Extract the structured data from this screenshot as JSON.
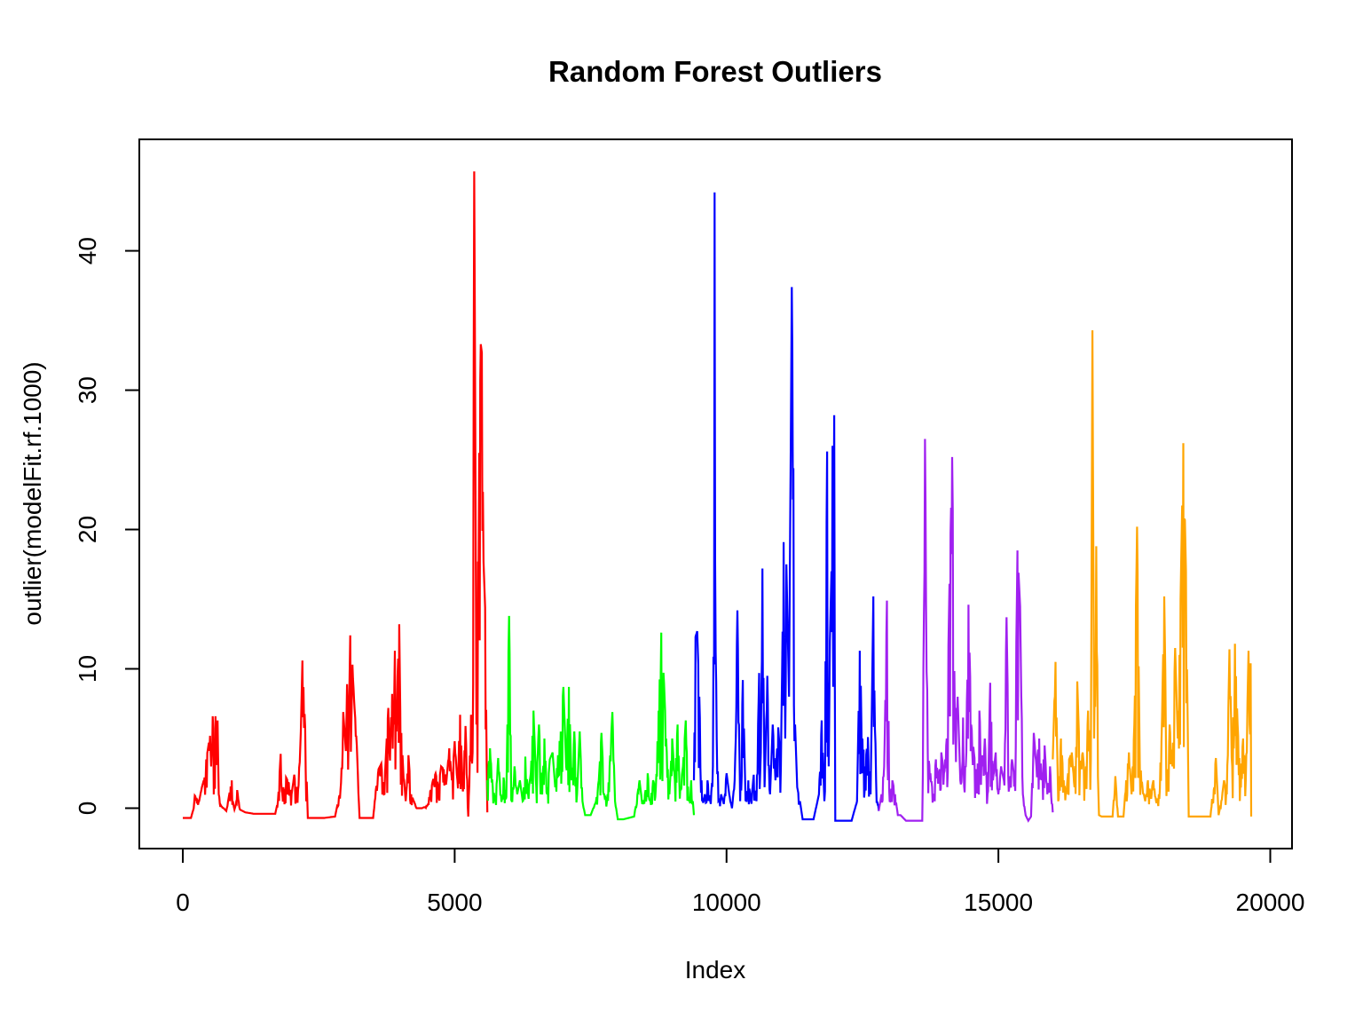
{
  "chart_data": {
    "type": "line",
    "title": "Random Forest Outliers",
    "xlabel": "Index",
    "ylabel": "outlier(modelFit.rf.1000)",
    "xlim": [
      -800,
      20400
    ],
    "ylim": [
      -2.9,
      48
    ],
    "xticks": [
      0,
      5000,
      10000,
      15000,
      20000
    ],
    "yticks": [
      0,
      10,
      20,
      30,
      40
    ],
    "grid": false,
    "legend": "none",
    "series": [
      {
        "color": "#ff0000",
        "range": [
          0,
          5600
        ],
        "x": [
          0,
          150,
          200,
          220,
          300,
          350,
          400,
          430,
          460,
          500,
          520,
          550,
          580,
          600,
          620,
          640,
          660,
          700,
          750,
          800,
          900,
          920,
          950,
          1000,
          1050,
          1100,
          1150,
          1300,
          1500,
          1700,
          1750,
          1800,
          1850,
          1900,
          1950,
          2000,
          2050,
          2100,
          2150,
          2170,
          2200,
          2250,
          2300,
          2400,
          2600,
          2800,
          2900,
          2950,
          3000,
          3020,
          3050,
          3080,
          3100,
          3120,
          3150,
          3200,
          3250,
          3300,
          3500,
          3550,
          3600,
          3650,
          3700,
          3750,
          3780,
          3800,
          3850,
          3880,
          3900,
          3930,
          3950,
          3980,
          4000,
          4050,
          4100,
          4150,
          4200,
          4300,
          4400,
          4500,
          4550,
          4600,
          4650,
          4700,
          4750,
          4800,
          4850,
          4900,
          4950,
          5000,
          5050,
          5100,
          5150,
          5200,
          5250,
          5300,
          5330,
          5360,
          5400,
          5450,
          5480,
          5500,
          5530,
          5560,
          5600
        ],
        "y": [
          -0.7,
          -0.7,
          0.0,
          0.9,
          0.5,
          1.5,
          2.2,
          3.5,
          4.2,
          5.2,
          3.0,
          6.6,
          4.0,
          6.6,
          3.5,
          6.3,
          1.0,
          0.2,
          0.0,
          -0.2,
          2.0,
          0.5,
          -0.1,
          1.3,
          -0.1,
          -0.2,
          -0.3,
          -0.4,
          -0.4,
          -0.4,
          0.5,
          3.9,
          1.5,
          2.2,
          1.8,
          1.0,
          2.4,
          1.3,
          3.3,
          5.5,
          10.6,
          5.8,
          -0.7,
          -0.7,
          -0.7,
          -0.6,
          1.3,
          6.9,
          4.1,
          8.9,
          5.3,
          12.4,
          6.2,
          10.3,
          7.8,
          4.5,
          -0.7,
          -0.7,
          -0.7,
          1.3,
          2.8,
          3.2,
          1.0,
          5.0,
          7.2,
          4.0,
          8.2,
          6.0,
          11.3,
          5.5,
          9.5,
          13.2,
          7.0,
          3.0,
          0.5,
          3.8,
          1.0,
          0.0,
          0.0,
          0.2,
          1.2,
          2.0,
          2.5,
          1.5,
          3.0,
          2.8,
          2.0,
          4.3,
          2.0,
          4.8,
          2.0,
          6.7,
          1.2,
          5.9,
          -0.6,
          6.7,
          4.0,
          45.7,
          6.0,
          25.5,
          33.3,
          32.7,
          17.7,
          14.4,
          -0.3
        ]
      },
      {
        "color": "#00ff00",
        "range": [
          5600,
          9400
        ],
        "x": [
          5600,
          5650,
          5700,
          5750,
          5800,
          5850,
          5900,
          5950,
          6000,
          6050,
          6100,
          6150,
          6200,
          6250,
          6300,
          6350,
          6400,
          6450,
          6500,
          6550,
          6600,
          6650,
          6700,
          6750,
          6800,
          6850,
          6900,
          6950,
          7000,
          7050,
          7100,
          7150,
          7200,
          7250,
          7300,
          7350,
          7400,
          7500,
          7600,
          7650,
          7700,
          7750,
          7800,
          7850,
          7900,
          7950,
          8000,
          8100,
          8200,
          8300,
          8400,
          8450,
          8500,
          8550,
          8600,
          8650,
          8700,
          8750,
          8800,
          8850,
          8900,
          8950,
          9000,
          9050,
          9100,
          9150,
          9200,
          9250,
          9300,
          9350,
          9400
        ],
        "y": [
          2.0,
          4.3,
          1.5,
          0.5,
          3.6,
          1.0,
          2.2,
          0.8,
          13.8,
          0.5,
          3.0,
          1.0,
          2.0,
          0.5,
          3.7,
          1.0,
          2.5,
          7.0,
          1.5,
          6.0,
          2.0,
          5.0,
          1.0,
          3.5,
          4.0,
          1.5,
          3.8,
          5.5,
          8.7,
          3.0,
          8.7,
          2.0,
          5.5,
          1.0,
          5.5,
          0.5,
          -0.5,
          -0.5,
          0.5,
          2.0,
          5.4,
          1.0,
          0.5,
          3.0,
          6.9,
          0.5,
          -0.8,
          -0.8,
          -0.7,
          -0.6,
          2.0,
          0.3,
          1.0,
          2.5,
          0.5,
          2.0,
          1.5,
          7.0,
          12.6,
          9.0,
          4.0,
          1.0,
          5.0,
          2.0,
          6.0,
          1.5,
          3.0,
          6.3,
          0.5,
          2.0,
          -0.5
        ]
      },
      {
        "color": "#0000ff",
        "range": [
          9400,
          12800
        ],
        "x": [
          9400,
          9430,
          9460,
          9500,
          9550,
          9600,
          9650,
          9700,
          9750,
          9780,
          9800,
          9850,
          9900,
          9950,
          10000,
          10050,
          10100,
          10150,
          10200,
          10250,
          10300,
          10350,
          10400,
          10450,
          10500,
          10550,
          10600,
          10630,
          10660,
          10700,
          10750,
          10800,
          10850,
          10900,
          10950,
          11000,
          11050,
          11080,
          11100,
          11150,
          11200,
          11230,
          11260,
          11300,
          11350,
          11400,
          11500,
          11600,
          11700,
          11750,
          11800,
          11850,
          11880,
          11900,
          11930,
          11950,
          11980,
          12000,
          12100,
          12200,
          12300,
          12400,
          12450,
          12500,
          12550,
          12600,
          12650,
          12700,
          12750,
          12800
        ],
        "y": [
          2.0,
          12.3,
          12.7,
          8.0,
          0.5,
          1.0,
          2.0,
          0.5,
          3.0,
          44.2,
          11.2,
          0.5,
          1.0,
          0.3,
          2.5,
          1.0,
          0.0,
          2.0,
          14.2,
          0.5,
          9.2,
          0.5,
          2.0,
          0.5,
          2.4,
          0.5,
          9.7,
          4.0,
          17.2,
          1.5,
          9.5,
          1.0,
          6.0,
          2.0,
          5.8,
          3.0,
          19.1,
          5.0,
          17.5,
          8.0,
          37.4,
          24.4,
          6.0,
          1.5,
          0.5,
          -0.8,
          -0.8,
          -0.8,
          1.0,
          6.3,
          0.5,
          25.6,
          3.0,
          12.0,
          17.0,
          26.0,
          28.2,
          -0.9,
          -0.9,
          -0.9,
          -0.9,
          0.5,
          11.3,
          5.0,
          3.0,
          5.1,
          1.0,
          15.2,
          2.0,
          -0.2
        ]
      },
      {
        "color": "#a020f0",
        "range": [
          12800,
          16000
        ],
        "x": [
          12800,
          12850,
          12900,
          12950,
          13000,
          13050,
          13100,
          13150,
          13200,
          13300,
          13400,
          13500,
          13600,
          13650,
          13700,
          13750,
          13800,
          13850,
          13900,
          13950,
          14000,
          14050,
          14100,
          14150,
          14200,
          14250,
          14300,
          14350,
          14400,
          14450,
          14500,
          14550,
          14600,
          14650,
          14700,
          14750,
          14800,
          14850,
          14900,
          14950,
          15000,
          15050,
          15100,
          15150,
          15200,
          15250,
          15300,
          15350,
          15400,
          15450,
          15500,
          15550,
          15600,
          15650,
          15700,
          15750,
          15800,
          15850,
          15900,
          15950,
          16000
        ],
        "y": [
          -0.2,
          1.0,
          3.0,
          14.9,
          0.5,
          2.0,
          1.0,
          -0.5,
          -0.5,
          -0.9,
          -0.9,
          -0.9,
          -0.9,
          26.5,
          4.0,
          2.5,
          1.0,
          3.5,
          2.0,
          4.0,
          2.5,
          5.0,
          16.1,
          25.2,
          6.0,
          8.0,
          2.0,
          6.5,
          3.0,
          14.6,
          6.0,
          4.0,
          2.0,
          7.0,
          3.0,
          5.0,
          1.0,
          9.0,
          2.0,
          4.0,
          1.0,
          3.0,
          2.0,
          13.7,
          1.5,
          3.5,
          2.0,
          18.5,
          14.5,
          1.0,
          -0.5,
          -0.9,
          -0.6,
          5.4,
          3.0,
          5.0,
          2.0,
          4.5,
          1.0,
          3.0,
          -0.3
        ]
      },
      {
        "color": "#ffa500",
        "range": [
          16000,
          19650
        ],
        "x": [
          16000,
          16050,
          16100,
          16150,
          16200,
          16250,
          16300,
          16350,
          16400,
          16450,
          16500,
          16550,
          16600,
          16650,
          16700,
          16730,
          16760,
          16800,
          16850,
          16900,
          16950,
          17000,
          17050,
          17100,
          17150,
          17200,
          17250,
          17300,
          17350,
          17400,
          17450,
          17500,
          17550,
          17600,
          17650,
          17700,
          17750,
          17800,
          17850,
          17900,
          17950,
          18000,
          18050,
          18100,
          18150,
          18200,
          18250,
          18300,
          18350,
          18400,
          18450,
          18500,
          18700,
          18900,
          19000,
          19050,
          19100,
          19150,
          19200,
          19250,
          19300,
          19350,
          19400,
          19450,
          19500,
          19550,
          19600,
          19620,
          19640,
          19650
        ],
        "y": [
          3.5,
          10.5,
          0.5,
          5.0,
          2.0,
          1.0,
          3.5,
          4.0,
          1.5,
          9.1,
          3.0,
          4.0,
          2.0,
          7.0,
          3.5,
          34.3,
          5.0,
          18.8,
          -0.5,
          -0.6,
          -0.6,
          -0.6,
          -0.6,
          -0.6,
          2.3,
          -0.6,
          -0.6,
          -0.6,
          2.0,
          4.0,
          1.0,
          6.0,
          20.2,
          3.5,
          1.5,
          0.5,
          2.0,
          1.0,
          2.0,
          0.5,
          1.0,
          4.8,
          15.2,
          2.0,
          6.0,
          3.0,
          11.5,
          5.0,
          15.0,
          26.2,
          17.0,
          -0.6,
          -0.6,
          -0.6,
          3.6,
          -0.5,
          0.5,
          2.0,
          1.0,
          11.4,
          3.0,
          11.8,
          6.0,
          2.0,
          5.0,
          2.0,
          11.3,
          6.0,
          10.4,
          -0.6
        ]
      }
    ]
  }
}
